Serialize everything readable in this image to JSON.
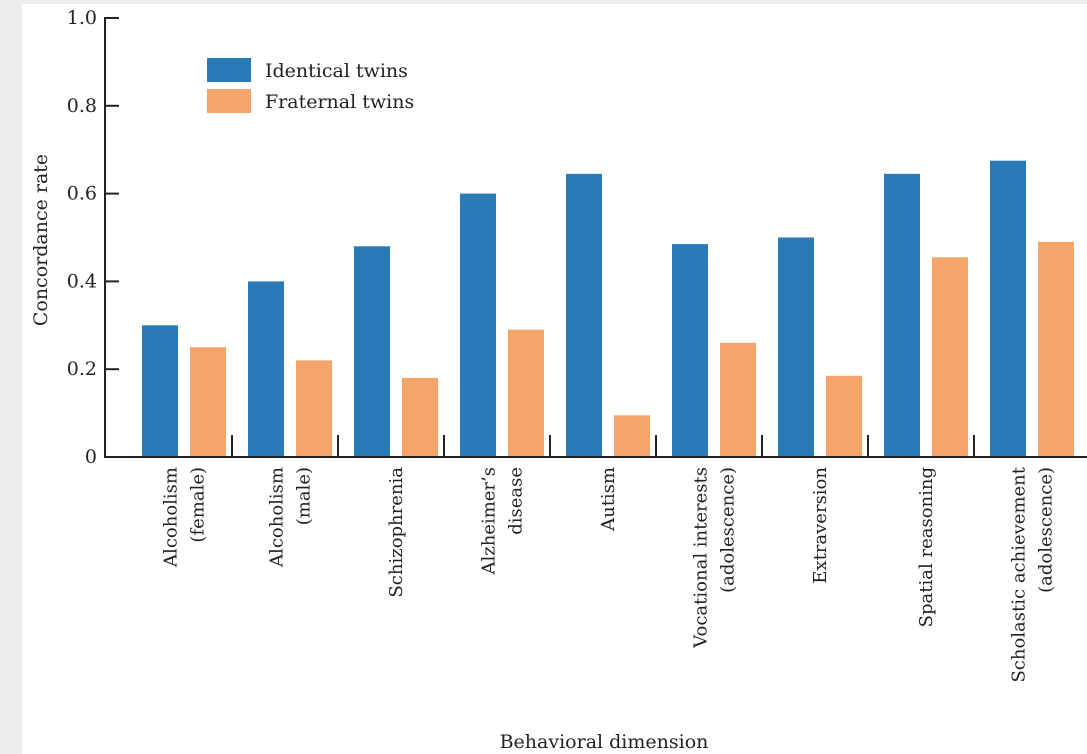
{
  "chart_data": {
    "type": "bar",
    "title": "",
    "xlabel": "Behavioral dimension",
    "ylabel": "Concordance rate",
    "ylim": [
      0,
      1.0
    ],
    "yticks": [
      {
        "value": 0,
        "label": "0"
      },
      {
        "value": 0.2,
        "label": "0.2"
      },
      {
        "value": 0.4,
        "label": "0.4"
      },
      {
        "value": 0.6,
        "label": "0.6"
      },
      {
        "value": 0.8,
        "label": "0.8"
      },
      {
        "value": 1.0,
        "label": "1.0"
      }
    ],
    "categories": [
      [
        "Alcoholism",
        "(female)"
      ],
      [
        "Alcoholism",
        "(male)"
      ],
      [
        "Schizophrenia"
      ],
      [
        "Alzheimer’s",
        "disease"
      ],
      [
        "Autism"
      ],
      [
        "Vocational interests",
        "(adolescence)"
      ],
      [
        "Extraversion"
      ],
      [
        "Spatial reasoning"
      ],
      [
        "Scholastic achievement",
        "(adolescence)"
      ]
    ],
    "series": [
      {
        "name": "Identical twins",
        "color": "#2a7ab8",
        "values": [
          0.3,
          0.4,
          0.48,
          0.6,
          0.645,
          0.485,
          0.5,
          0.645,
          0.675
        ]
      },
      {
        "name": "Fraternal twins",
        "color": "#f5a46a",
        "values": [
          0.25,
          0.22,
          0.18,
          0.29,
          0.095,
          0.26,
          0.185,
          0.455,
          0.49
        ]
      }
    ],
    "legend": "top-left",
    "grid": false
  }
}
